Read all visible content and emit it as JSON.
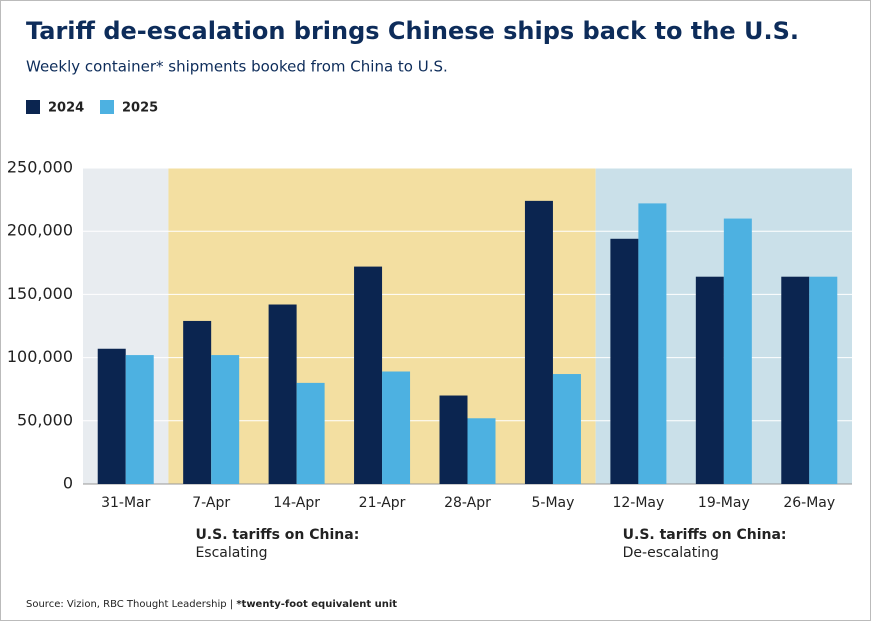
{
  "chart_data": {
    "type": "bar",
    "title": "Tariff de-escalation brings Chinese ships back to the U.S.",
    "subtitle": "Weekly container* shipments booked from China to U.S.",
    "categories": [
      "31-Mar",
      "7-Apr",
      "14-Apr",
      "21-Apr",
      "28-Apr",
      "5-May",
      "12-May",
      "19-May",
      "26-May"
    ],
    "series": [
      {
        "name": "2024",
        "color": "#0b2550",
        "values": [
          107000,
          129000,
          142000,
          172000,
          70000,
          224000,
          194000,
          164000,
          164000
        ]
      },
      {
        "name": "2025",
        "color": "#4db1e1",
        "values": [
          102000,
          102000,
          80000,
          89000,
          52000,
          87000,
          222000,
          210000,
          164000
        ]
      }
    ],
    "ylim": [
      0,
      250000
    ],
    "yticks": [
      0,
      {
        "value": 50000,
        "label": "50,000"
      },
      {
        "value": 100000,
        "label": "100,000"
      },
      {
        "value": 150000,
        "label": "150,000"
      },
      {
        "value": 200000,
        "label": "200,000"
      },
      {
        "value": 250000,
        "label": "250,000"
      }
    ],
    "grid": true,
    "shaded_ranges": [
      {
        "from": "31-Mar",
        "to": "31-Mar",
        "color": "#e8ecf0"
      },
      {
        "from": "7-Apr",
        "to": "5-May",
        "color": "#f3dfa1"
      },
      {
        "from": "12-May",
        "to": "26-May",
        "color": "#cae0e9"
      }
    ],
    "annotations": [
      {
        "title": "U.S. tariffs on China:",
        "text": "Escalating",
        "at": "7-Apr"
      },
      {
        "title": "U.S. tariffs on China:",
        "text": "De-escalating",
        "at": "12-May"
      }
    ],
    "source": "Source: Vizion, RBC Thought Leadership | ",
    "note": "*twenty-foot equivalent unit"
  }
}
